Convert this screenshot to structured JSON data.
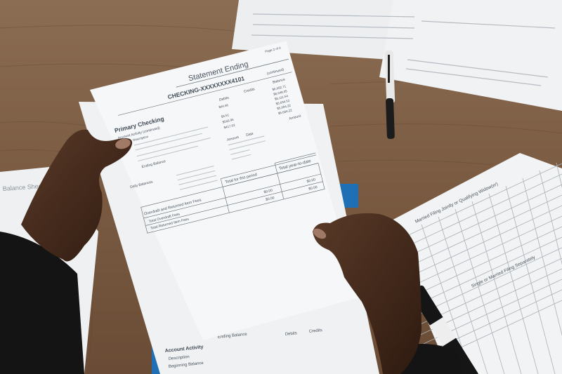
{
  "statement": {
    "heading": "Statement Ending",
    "page": "Page 2 of 4",
    "account": "CHECKING-XXXXXXXX4101",
    "account_suffix": "(continued)",
    "section": "Primary Checking",
    "activity": "Account Activity (continued)",
    "description": "Description",
    "ending_balance": "Ending Balance",
    "daily_balances": "Daily Balances",
    "columns": {
      "debits": "Debits",
      "credits": "Credits",
      "balance": "Balance",
      "amount": "Amount",
      "date": "Date"
    },
    "debit_values": [
      "$44.66",
      "$3.51",
      "$543.96",
      "$417.02"
    ],
    "balance_values": [
      "$6,692.71",
      "$6,648.05",
      "$6,111.54",
      "$5,694.52",
      "$5,694.22",
      "$5,684.22"
    ],
    "fees": {
      "title": "Overdraft and Returned Item Fees",
      "period_header": "Total for this period",
      "ytd_header": "Total year-to-date",
      "rows": [
        {
          "label": "Total Overdraft Fees",
          "period": "$0.00",
          "ytd": "$0.00"
        },
        {
          "label": "Total Returned Item Fees",
          "period": "$0.00",
          "ytd": "$0.00"
        }
      ]
    }
  },
  "under_statement": {
    "section": "Account Activity",
    "description": "Description",
    "beginning_balance": "Beginning Balance",
    "ending_balance": "Ending Balance",
    "debits": "Debits",
    "credits": "Credits"
  },
  "tax_table": {
    "title_1": "Married Filing Jointly or Qualifying Widow(er)",
    "title_2": "Single or Married Filing Separately"
  },
  "left_sheet": {
    "title": "Balance Sheet"
  },
  "colors": {
    "wood": "#7a5d45",
    "paper": "#f4f5f6",
    "skin": "#3b2418",
    "sleeve": "#151515",
    "folder": "#1f6fb5"
  }
}
